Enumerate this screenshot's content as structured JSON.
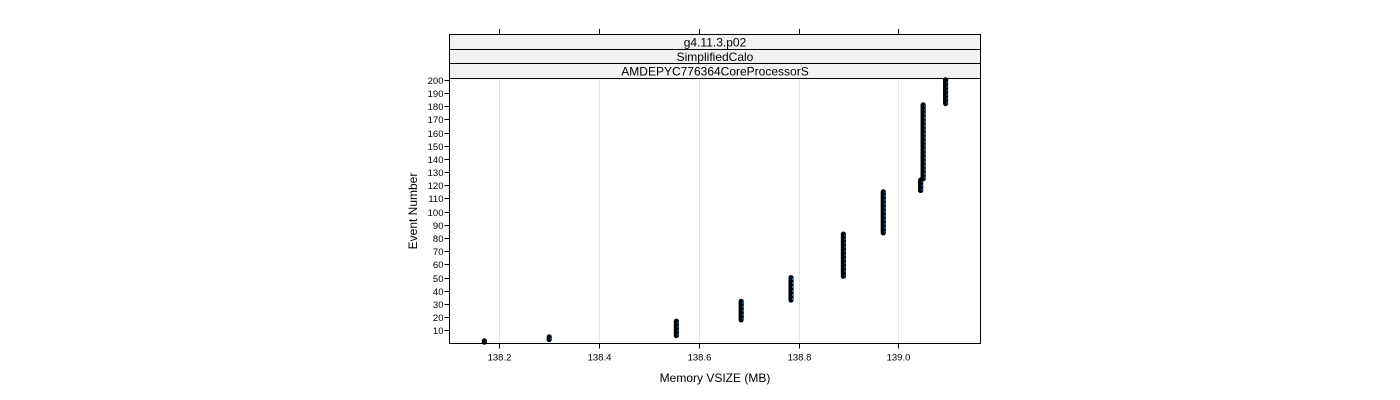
{
  "chart_data": {
    "type": "scatter",
    "strips": [
      "g4.11.3.p02",
      "SimplifiedCalo",
      "AMDEPYC776364CoreProcessorS"
    ],
    "xlabel": "Memory VSIZE (MB)",
    "ylabel": "Event Number",
    "xlim": [
      138.1,
      139.165
    ],
    "ylim": [
      0,
      201
    ],
    "x_ticks": [
      138.2,
      138.4,
      138.6,
      138.8,
      139.0
    ],
    "x_tick_labels": [
      "138.2",
      "138.4",
      "138.6",
      "138.8",
      "139.0"
    ],
    "y_ticks": [
      10,
      20,
      30,
      40,
      50,
      60,
      70,
      80,
      90,
      100,
      110,
      120,
      130,
      140,
      150,
      160,
      170,
      180,
      190,
      200
    ],
    "grid": "vertical",
    "point_color": "#000000",
    "line_color": "#0080ff",
    "segments": [
      {
        "x": 138.17,
        "y_from": 1,
        "y_to": 2
      },
      {
        "x": 138.3,
        "y_from": 3,
        "y_to": 5
      },
      {
        "x": 138.555,
        "y_from": 6,
        "y_to": 17
      },
      {
        "x": 138.685,
        "y_from": 18,
        "y_to": 32
      },
      {
        "x": 138.785,
        "y_from": 33,
        "y_to": 50
      },
      {
        "x": 138.89,
        "y_from": 51,
        "y_to": 83
      },
      {
        "x": 138.97,
        "y_from": 84,
        "y_to": 115
      },
      {
        "x": 139.045,
        "y_from": 116,
        "y_to": 124
      },
      {
        "x": 139.05,
        "y_from": 125,
        "y_to": 181
      },
      {
        "x": 139.095,
        "y_from": 182,
        "y_to": 200
      }
    ]
  }
}
